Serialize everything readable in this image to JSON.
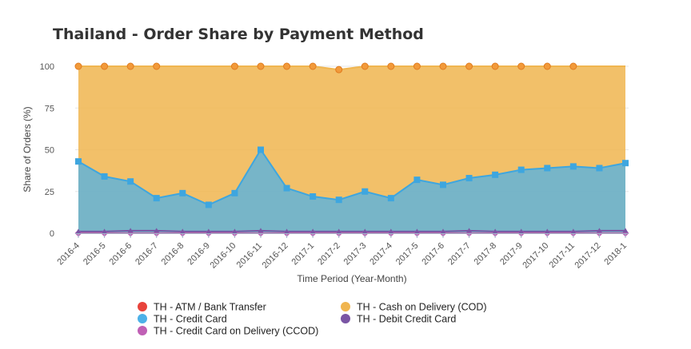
{
  "chart_data": {
    "type": "area",
    "title": "Thailand - Order Share by Payment Method",
    "xlabel": "Time Period (Year-Month)",
    "ylabel": "Share of Orders (%)",
    "ylim": [
      0,
      100
    ],
    "yticks": [
      "0",
      "25",
      "50",
      "75",
      "100"
    ],
    "categories": [
      "2016-4",
      "2016-5",
      "2016-6",
      "2016-7",
      "2016-8",
      "2016-9",
      "2016-10",
      "2016-11",
      "2016-12",
      "2017-1",
      "2017-2",
      "2017-3",
      "2017-4",
      "2017-5",
      "2017-6",
      "2017-7",
      "2017-8",
      "2017-9",
      "2017-10",
      "2017-11",
      "2017-12",
      "2018-1"
    ],
    "series": [
      {
        "name": "TH - ATM / Bank Transfer",
        "color": "#e8433b",
        "marker": "circle",
        "values": [
          0,
          0,
          0,
          0,
          0,
          0,
          0,
          0,
          0,
          0,
          0,
          0,
          0,
          0,
          0,
          0,
          0,
          0,
          0,
          0,
          0,
          0
        ]
      },
      {
        "name": "TH - Cash on Delivery (COD)",
        "color": "#f0b54f",
        "marker": "circle",
        "values": [
          100,
          100,
          100,
          100,
          100,
          100,
          100,
          100,
          100,
          100,
          98,
          100,
          100,
          100,
          100,
          100,
          100,
          100,
          100,
          100,
          100,
          100
        ]
      },
      {
        "name": "TH - Credit Card",
        "color": "#4db1e8",
        "marker": "square",
        "values": [
          43,
          34,
          31,
          21,
          24,
          17,
          24,
          50,
          27,
          22,
          20,
          25,
          21,
          32,
          29,
          33,
          35,
          38,
          39,
          40,
          39,
          42
        ]
      },
      {
        "name": "TH - Debit Credit Card",
        "color": "#7a55a4",
        "marker": "triangle",
        "values": [
          1,
          1,
          1.5,
          1.5,
          1,
          1,
          1,
          1.5,
          1,
          1,
          1,
          1,
          1,
          1,
          1,
          1.5,
          1,
          1,
          1,
          1,
          1.5,
          1.5
        ]
      },
      {
        "name": "TH - Credit Card on Delivery (CCOD)",
        "color": "#c060b5",
        "marker": "diamond",
        "values": [
          0,
          0,
          0,
          0,
          0,
          0,
          0,
          0,
          0,
          0,
          0,
          0,
          0,
          0,
          0,
          0,
          0,
          0,
          0,
          0,
          0,
          0
        ]
      }
    ],
    "legend_order": [
      "TH - ATM / Bank Transfer",
      "TH - Cash on Delivery (COD)",
      "TH - Credit Card",
      "TH - Debit Credit Card",
      "TH - Credit Card on Delivery (CCOD)"
    ],
    "legend_position": "bottom",
    "grid": true
  }
}
